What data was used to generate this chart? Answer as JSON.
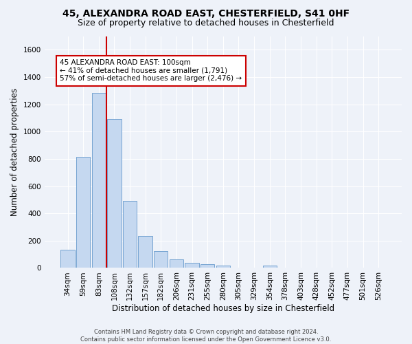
{
  "title_line1": "45, ALEXANDRA ROAD EAST, CHESTERFIELD, S41 0HF",
  "title_line2": "Size of property relative to detached houses in Chesterfield",
  "xlabel": "Distribution of detached houses by size in Chesterfield",
  "ylabel": "Number of detached properties",
  "footnote": "Contains HM Land Registry data © Crown copyright and database right 2024.\nContains public sector information licensed under the Open Government Licence v3.0.",
  "bar_labels": [
    "34sqm",
    "59sqm",
    "83sqm",
    "108sqm",
    "132sqm",
    "157sqm",
    "182sqm",
    "206sqm",
    "231sqm",
    "255sqm",
    "280sqm",
    "305sqm",
    "329sqm",
    "354sqm",
    "378sqm",
    "403sqm",
    "428sqm",
    "452sqm",
    "477sqm",
    "501sqm",
    "526sqm"
  ],
  "bar_values": [
    135,
    815,
    1285,
    1090,
    490,
    235,
    125,
    65,
    38,
    27,
    15,
    0,
    0,
    15,
    0,
    0,
    0,
    0,
    0,
    0,
    0
  ],
  "bar_color": "#c5d8f0",
  "bar_edgecolor": "#6699cc",
  "vline_x_bin": 2.5,
  "vline_color": "#cc0000",
  "annotation_text": "45 ALEXANDRA ROAD EAST: 100sqm\n← 41% of detached houses are smaller (1,791)\n57% of semi-detached houses are larger (2,476) →",
  "ylim": [
    0,
    1700
  ],
  "yticks": [
    0,
    200,
    400,
    600,
    800,
    1000,
    1200,
    1400,
    1600
  ],
  "background_color": "#eef2f9",
  "plot_bg_color": "#eef2f9",
  "grid_color": "#ffffff",
  "title_fontsize": 10,
  "subtitle_fontsize": 9,
  "axis_label_fontsize": 8.5,
  "tick_fontsize": 7.5,
  "annotation_fontsize": 7.5,
  "footnote_fontsize": 6
}
